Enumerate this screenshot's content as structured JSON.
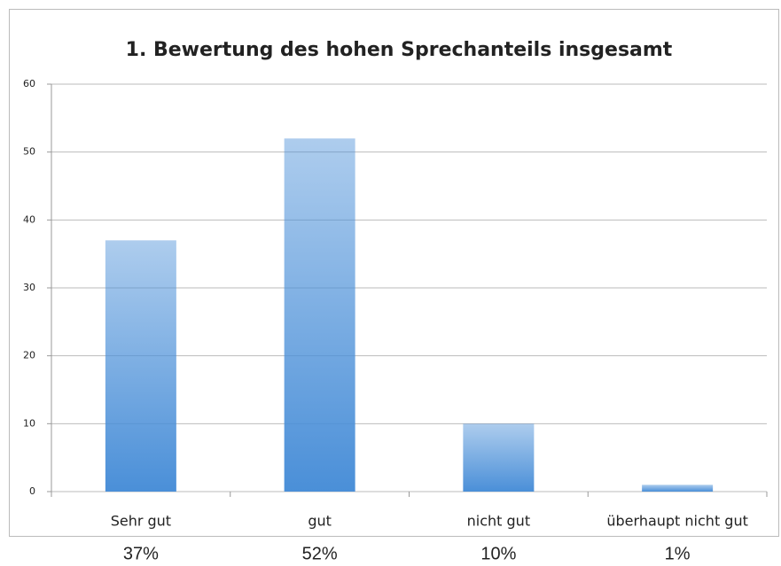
{
  "chart_data": {
    "type": "bar",
    "title": "1. Bewertung des hohen Sprechanteils insgesamt",
    "categories": [
      "Sehr gut",
      "gut",
      "nicht gut",
      "überhaupt nicht gut"
    ],
    "values": [
      37,
      52,
      10,
      1
    ],
    "value_labels": [
      "37%",
      "52%",
      "10%",
      "1%"
    ],
    "color": "#4a8fd8",
    "ylim": [
      0,
      60
    ],
    "yticks": [
      0,
      10,
      20,
      30,
      40,
      50,
      60
    ],
    "grid": true
  }
}
